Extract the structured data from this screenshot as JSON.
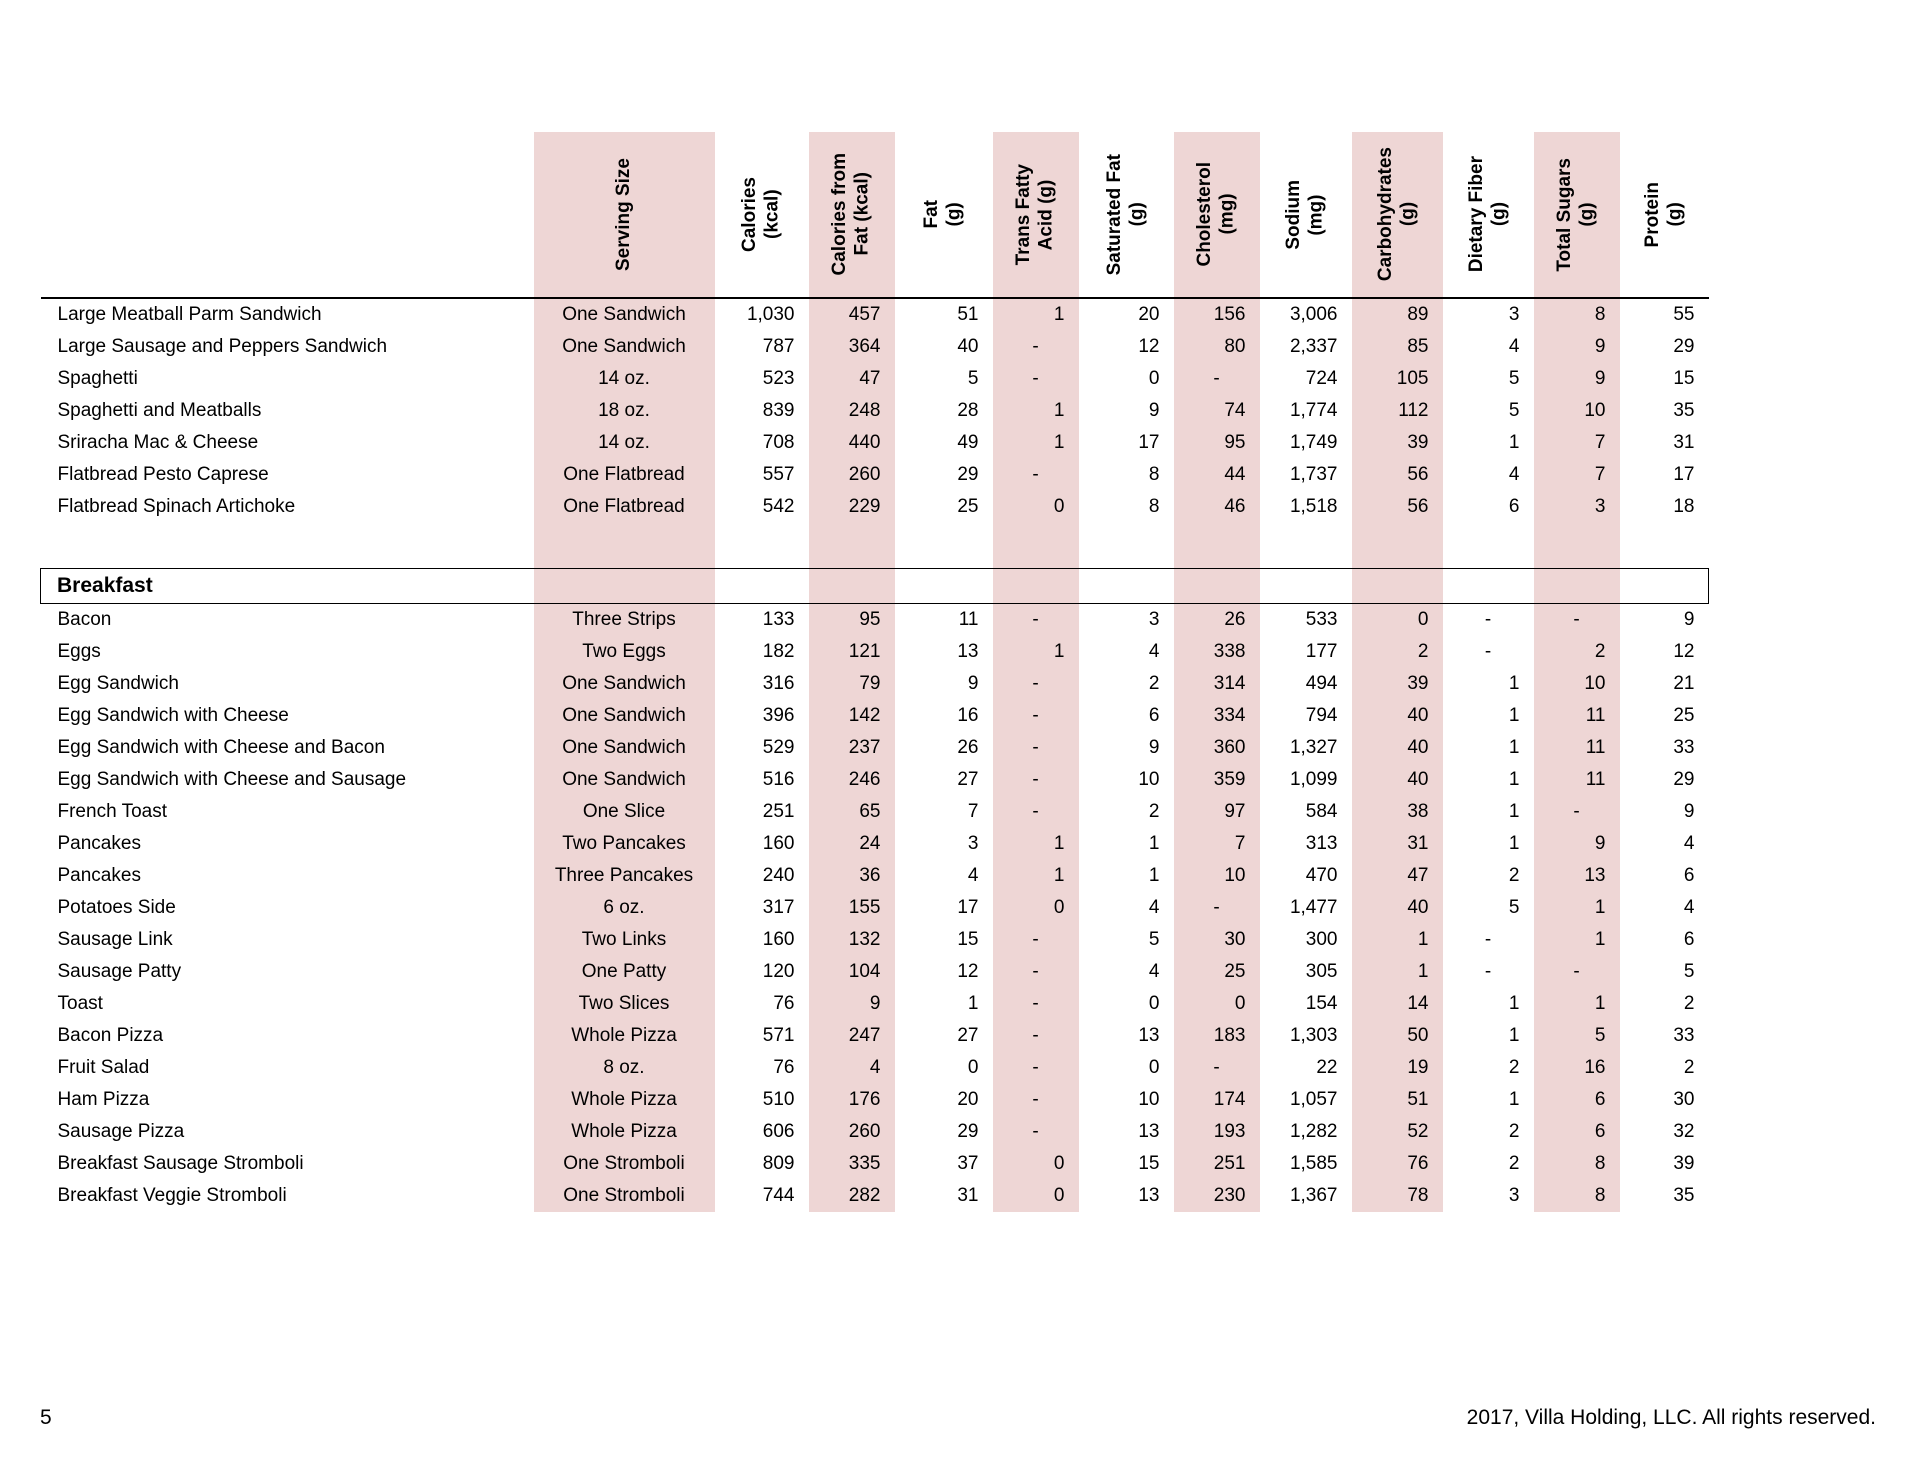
{
  "colors": {
    "band": "#eed6d5",
    "border": "#000000"
  },
  "columns": [
    {
      "id": "item",
      "label": "",
      "shaded": false
    },
    {
      "id": "serving_size",
      "label": "Serving Size",
      "shaded": true
    },
    {
      "id": "calories",
      "label": "Calories\n(kcal)",
      "shaded": false
    },
    {
      "id": "calories_from_fat",
      "label": "Calories from\nFat (kcal)",
      "shaded": true
    },
    {
      "id": "fat",
      "label": "Fat\n(g)",
      "shaded": false
    },
    {
      "id": "trans_fatty_acid",
      "label": "Trans Fatty\nAcid (g)",
      "shaded": true
    },
    {
      "id": "saturated_fat",
      "label": "Saturated Fat\n(g)",
      "shaded": false
    },
    {
      "id": "cholesterol",
      "label": "Cholesterol\n(mg)",
      "shaded": true
    },
    {
      "id": "sodium",
      "label": "Sodium\n(mg)",
      "shaded": false
    },
    {
      "id": "carbohydrates",
      "label": "Carbohydrates\n(g)",
      "shaded": true
    },
    {
      "id": "dietary_fiber",
      "label": "Dietary Fiber\n(g)",
      "shaded": false
    },
    {
      "id": "total_sugars",
      "label": "Total Sugars\n(g)",
      "shaded": true
    },
    {
      "id": "protein",
      "label": "Protein\n(g)",
      "shaded": false
    }
  ],
  "sections": [
    {
      "title": null,
      "rows": [
        {
          "item": "Large Meatball Parm Sandwich",
          "values": [
            "One Sandwich",
            "1,030",
            "457",
            "51",
            "1",
            "20",
            "156",
            "3,006",
            "89",
            "3",
            "8",
            "55"
          ]
        },
        {
          "item": "Large Sausage and Peppers Sandwich",
          "values": [
            "One Sandwich",
            "787",
            "364",
            "40",
            "-",
            "12",
            "80",
            "2,337",
            "85",
            "4",
            "9",
            "29"
          ]
        },
        {
          "item": "Spaghetti",
          "values": [
            "14 oz.",
            "523",
            "47",
            "5",
            "-",
            "0",
            "-",
            "724",
            "105",
            "5",
            "9",
            "15"
          ]
        },
        {
          "item": "Spaghetti and Meatballs",
          "values": [
            "18 oz.",
            "839",
            "248",
            "28",
            "1",
            "9",
            "74",
            "1,774",
            "112",
            "5",
            "10",
            "35"
          ]
        },
        {
          "item": "Sriracha Mac & Cheese",
          "values": [
            "14 oz.",
            "708",
            "440",
            "49",
            "1",
            "17",
            "95",
            "1,749",
            "39",
            "1",
            "7",
            "31"
          ]
        },
        {
          "item": "Flatbread Pesto Caprese",
          "values": [
            "One Flatbread",
            "557",
            "260",
            "29",
            "-",
            "8",
            "44",
            "1,737",
            "56",
            "4",
            "7",
            "17"
          ]
        },
        {
          "item": "Flatbread Spinach Artichoke",
          "values": [
            "One Flatbread",
            "542",
            "229",
            "25",
            "0",
            "8",
            "46",
            "1,518",
            "56",
            "6",
            "3",
            "18"
          ]
        }
      ]
    },
    {
      "title": "Breakfast",
      "rows": [
        {
          "item": "Bacon",
          "values": [
            "Three Strips",
            "133",
            "95",
            "11",
            "-",
            "3",
            "26",
            "533",
            "0",
            "-",
            "-",
            "9"
          ]
        },
        {
          "item": "Eggs",
          "values": [
            "Two Eggs",
            "182",
            "121",
            "13",
            "1",
            "4",
            "338",
            "177",
            "2",
            "-",
            "2",
            "12"
          ]
        },
        {
          "item": "Egg Sandwich",
          "values": [
            "One Sandwich",
            "316",
            "79",
            "9",
            "-",
            "2",
            "314",
            "494",
            "39",
            "1",
            "10",
            "21"
          ]
        },
        {
          "item": "Egg Sandwich with Cheese",
          "values": [
            "One Sandwich",
            "396",
            "142",
            "16",
            "-",
            "6",
            "334",
            "794",
            "40",
            "1",
            "11",
            "25"
          ]
        },
        {
          "item": "Egg Sandwich with Cheese and Bacon",
          "values": [
            "One Sandwich",
            "529",
            "237",
            "26",
            "-",
            "9",
            "360",
            "1,327",
            "40",
            "1",
            "11",
            "33"
          ]
        },
        {
          "item": "Egg Sandwich with Cheese and Sausage",
          "values": [
            "One Sandwich",
            "516",
            "246",
            "27",
            "-",
            "10",
            "359",
            "1,099",
            "40",
            "1",
            "11",
            "29"
          ]
        },
        {
          "item": "French Toast",
          "values": [
            "One Slice",
            "251",
            "65",
            "7",
            "-",
            "2",
            "97",
            "584",
            "38",
            "1",
            "-",
            "9"
          ]
        },
        {
          "item": "Pancakes",
          "values": [
            "Two Pancakes",
            "160",
            "24",
            "3",
            "1",
            "1",
            "7",
            "313",
            "31",
            "1",
            "9",
            "4"
          ]
        },
        {
          "item": "Pancakes",
          "values": [
            "Three Pancakes",
            "240",
            "36",
            "4",
            "1",
            "1",
            "10",
            "470",
            "47",
            "2",
            "13",
            "6"
          ]
        },
        {
          "item": "Potatoes Side",
          "values": [
            "6 oz.",
            "317",
            "155",
            "17",
            "0",
            "4",
            "-",
            "1,477",
            "40",
            "5",
            "1",
            "4"
          ]
        },
        {
          "item": "Sausage Link",
          "values": [
            "Two Links",
            "160",
            "132",
            "15",
            "-",
            "5",
            "30",
            "300",
            "1",
            "-",
            "1",
            "6"
          ]
        },
        {
          "item": "Sausage Patty",
          "values": [
            "One Patty",
            "120",
            "104",
            "12",
            "-",
            "4",
            "25",
            "305",
            "1",
            "-",
            "-",
            "5"
          ]
        },
        {
          "item": "Toast",
          "values": [
            "Two Slices",
            "76",
            "9",
            "1",
            "-",
            "0",
            "0",
            "154",
            "14",
            "1",
            "1",
            "2"
          ]
        },
        {
          "item": "Bacon Pizza",
          "values": [
            "Whole Pizza",
            "571",
            "247",
            "27",
            "-",
            "13",
            "183",
            "1,303",
            "50",
            "1",
            "5",
            "33"
          ]
        },
        {
          "item": "Fruit Salad",
          "values": [
            "8 oz.",
            "76",
            "4",
            "0",
            "-",
            "0",
            "-",
            "22",
            "19",
            "2",
            "16",
            "2"
          ]
        },
        {
          "item": "Ham Pizza",
          "values": [
            "Whole Pizza",
            "510",
            "176",
            "20",
            "-",
            "10",
            "174",
            "1,057",
            "51",
            "1",
            "6",
            "30"
          ]
        },
        {
          "item": "Sausage Pizza",
          "values": [
            "Whole Pizza",
            "606",
            "260",
            "29",
            "-",
            "13",
            "193",
            "1,282",
            "52",
            "2",
            "6",
            "32"
          ]
        },
        {
          "item": "Breakfast Sausage Stromboli",
          "values": [
            "One Stromboli",
            "809",
            "335",
            "37",
            "0",
            "15",
            "251",
            "1,585",
            "76",
            "2",
            "8",
            "39"
          ]
        },
        {
          "item": "Breakfast Veggie Stromboli",
          "values": [
            "One Stromboli",
            "744",
            "282",
            "31",
            "0",
            "13",
            "230",
            "1,367",
            "78",
            "3",
            "8",
            "35"
          ]
        }
      ]
    }
  ],
  "footer": {
    "page_number": "5",
    "copyright": "2017, Villa Holding, LLC. All rights reserved."
  }
}
